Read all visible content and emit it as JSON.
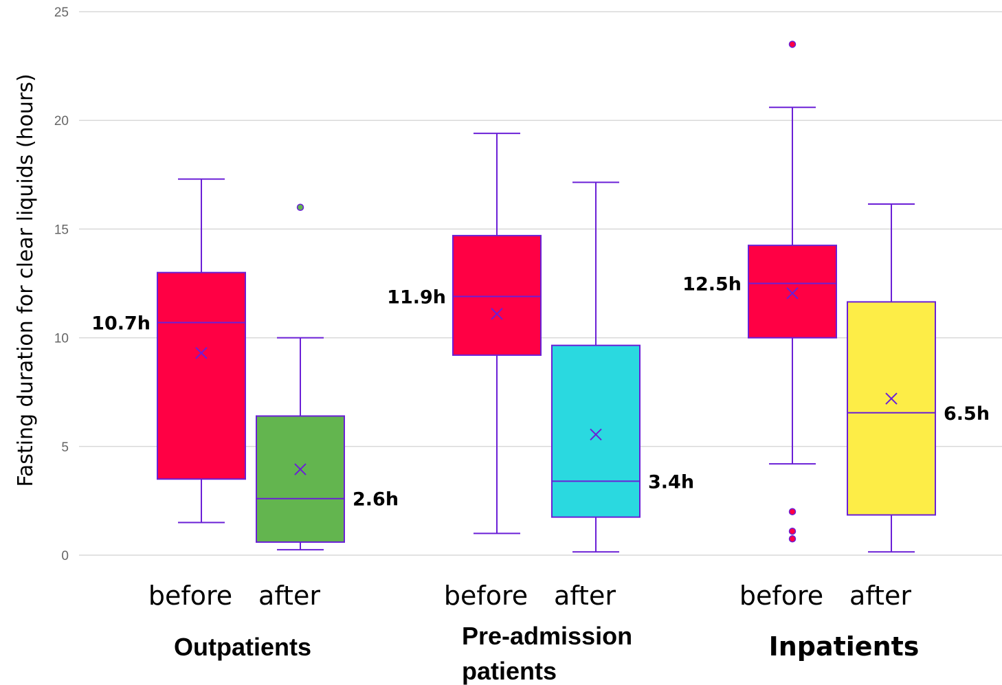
{
  "chart_data": {
    "type": "box",
    "ylabel": "Fasting duration for clear liquids (hours)",
    "ylim": [
      0,
      25
    ],
    "yticks": [
      0,
      5,
      10,
      15,
      20,
      25
    ],
    "grid": true,
    "line_color": "#6a1fd6",
    "groups": [
      {
        "name": "Outpatients",
        "boxes": [
          {
            "label": "before",
            "color": "#ff0044",
            "whisker_low": 1.5,
            "q1": 3.5,
            "median": 10.7,
            "q3": 13.0,
            "whisker_high": 17.3,
            "mean": 9.3,
            "outliers": [],
            "median_text": "10.7h",
            "label_side": "left"
          },
          {
            "label": "after",
            "color": "#63b54f",
            "whisker_low": 0.25,
            "q1": 0.6,
            "median": 2.6,
            "q3": 6.4,
            "whisker_high": 10.0,
            "mean": 3.95,
            "outliers": [
              16.0
            ],
            "median_text": "2.6h",
            "label_side": "right"
          }
        ]
      },
      {
        "name": "Pre-admission patients",
        "boxes": [
          {
            "label": "before",
            "color": "#ff0044",
            "whisker_low": 1.0,
            "q1": 9.2,
            "median": 11.9,
            "q3": 14.7,
            "whisker_high": 19.4,
            "mean": 11.1,
            "outliers": [],
            "median_text": "11.9h",
            "label_side": "left"
          },
          {
            "label": "after",
            "color": "#2ad9e0",
            "whisker_low": 0.15,
            "q1": 1.75,
            "median": 3.4,
            "q3": 9.65,
            "whisker_high": 17.15,
            "mean": 5.55,
            "outliers": [],
            "median_text": "3.4h",
            "label_side": "right"
          }
        ]
      },
      {
        "name": "Inpatients",
        "boxes": [
          {
            "label": "before",
            "color": "#ff0044",
            "whisker_low": 4.2,
            "q1": 10.0,
            "median": 12.5,
            "q3": 14.25,
            "whisker_high": 20.6,
            "mean": 12.05,
            "outliers": [
              23.5,
              2.0,
              1.1,
              0.75
            ],
            "median_text": "12.5h",
            "label_side": "left"
          },
          {
            "label": "after",
            "color": "#fded47",
            "whisker_low": 0.15,
            "q1": 1.85,
            "median": 6.55,
            "q3": 11.65,
            "whisker_high": 16.15,
            "mean": 7.2,
            "outliers": [],
            "median_text": "6.5h",
            "label_side": "right"
          }
        ]
      }
    ]
  }
}
